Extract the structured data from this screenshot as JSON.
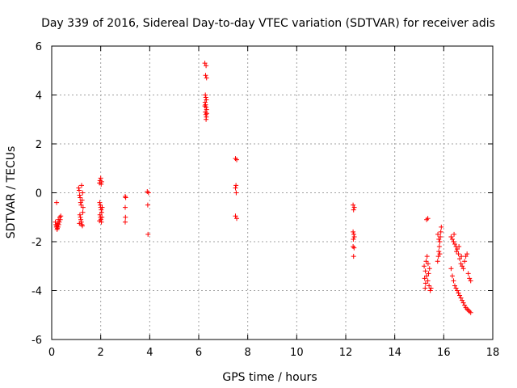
{
  "chart_data": {
    "type": "scatter",
    "title": "Day 339 of 2016, Sidereal Day-to-day VTEC variation (SDTVAR) for receiver adis",
    "xlabel": "GPS time / hours",
    "ylabel": "SDTVAR / TECUs",
    "xlim": [
      0,
      18
    ],
    "ylim": [
      -6,
      6
    ],
    "xticks": [
      0,
      2,
      4,
      6,
      8,
      10,
      12,
      14,
      16,
      18
    ],
    "yticks": [
      -6,
      -4,
      -2,
      0,
      2,
      4,
      6
    ],
    "xtick_labels": [
      "0",
      "2",
      "4",
      "6",
      "8",
      "10",
      "12",
      "14",
      "16",
      "18"
    ],
    "ytick_labels": [
      "-6",
      "-4",
      "-2",
      "0",
      "2",
      "4",
      "6"
    ],
    "grid": true,
    "marker": "+",
    "color": "#ff0000",
    "series": [
      {
        "name": "SDTVAR",
        "points": [
          [
            0.2,
            -0.4
          ],
          [
            0.15,
            -1.2
          ],
          [
            0.17,
            -1.3
          ],
          [
            0.19,
            -1.4
          ],
          [
            0.21,
            -1.35
          ],
          [
            0.23,
            -1.45
          ],
          [
            0.25,
            -1.25
          ],
          [
            0.27,
            -1.1
          ],
          [
            0.29,
            -1.3
          ],
          [
            0.31,
            -1.2
          ],
          [
            0.33,
            -1.0
          ],
          [
            0.35,
            -1.1
          ],
          [
            0.37,
            -0.95
          ],
          [
            0.22,
            -1.5
          ],
          [
            0.26,
            -1.4
          ],
          [
            1.1,
            0.2
          ],
          [
            1.12,
            0.1
          ],
          [
            1.14,
            -0.1
          ],
          [
            1.16,
            -0.2
          ],
          [
            1.18,
            -0.4
          ],
          [
            1.2,
            -0.5
          ],
          [
            1.22,
            0.3
          ],
          [
            1.24,
            -0.3
          ],
          [
            1.26,
            0.0
          ],
          [
            1.28,
            -0.6
          ],
          [
            1.15,
            -0.9
          ],
          [
            1.17,
            -1.0
          ],
          [
            1.19,
            -1.1
          ],
          [
            1.21,
            -1.2
          ],
          [
            1.23,
            -1.3
          ],
          [
            1.25,
            -1.35
          ],
          [
            1.13,
            -1.25
          ],
          [
            1.27,
            -0.8
          ],
          [
            1.95,
            0.4
          ],
          [
            1.97,
            0.5
          ],
          [
            2.0,
            0.6
          ],
          [
            2.02,
            0.35
          ],
          [
            2.04,
            0.45
          ],
          [
            1.96,
            -0.4
          ],
          [
            1.98,
            -0.5
          ],
          [
            2.0,
            -0.6
          ],
          [
            2.02,
            -0.7
          ],
          [
            2.04,
            -0.8
          ],
          [
            1.97,
            -0.9
          ],
          [
            1.99,
            -1.0
          ],
          [
            2.01,
            -1.1
          ],
          [
            2.03,
            -1.2
          ],
          [
            2.05,
            -1.0
          ],
          [
            1.95,
            -1.15
          ],
          [
            2.06,
            -0.6
          ],
          [
            3.0,
            -0.15
          ],
          [
            3.02,
            -0.2
          ],
          [
            3.0,
            -0.6
          ],
          [
            3.01,
            -1.0
          ],
          [
            3.0,
            -1.2
          ],
          [
            3.9,
            0.05
          ],
          [
            3.95,
            0.0
          ],
          [
            3.92,
            -0.5
          ],
          [
            3.93,
            -1.7
          ],
          [
            6.25,
            5.3
          ],
          [
            6.3,
            5.2
          ],
          [
            6.28,
            4.8
          ],
          [
            6.32,
            4.7
          ],
          [
            6.27,
            4.0
          ],
          [
            6.29,
            3.9
          ],
          [
            6.31,
            3.8
          ],
          [
            6.26,
            3.7
          ],
          [
            6.28,
            3.6
          ],
          [
            6.3,
            3.5
          ],
          [
            6.32,
            3.4
          ],
          [
            6.27,
            3.3
          ],
          [
            6.29,
            3.2
          ],
          [
            6.31,
            3.1
          ],
          [
            6.3,
            3.0
          ],
          [
            6.25,
            3.55
          ],
          [
            6.33,
            3.25
          ],
          [
            7.5,
            1.4
          ],
          [
            7.55,
            1.35
          ],
          [
            7.52,
            0.3
          ],
          [
            7.5,
            0.2
          ],
          [
            7.53,
            0.0
          ],
          [
            7.5,
            -0.95
          ],
          [
            7.55,
            -1.05
          ],
          [
            12.3,
            -0.5
          ],
          [
            12.35,
            -0.6
          ],
          [
            12.32,
            -0.7
          ],
          [
            12.3,
            -1.6
          ],
          [
            12.33,
            -1.7
          ],
          [
            12.35,
            -1.8
          ],
          [
            12.31,
            -1.9
          ],
          [
            12.3,
            -2.2
          ],
          [
            12.34,
            -2.25
          ],
          [
            12.32,
            -2.6
          ],
          [
            15.3,
            -1.1
          ],
          [
            15.35,
            -1.05
          ],
          [
            15.2,
            -3.0
          ],
          [
            15.25,
            -3.2
          ],
          [
            15.3,
            -3.4
          ],
          [
            15.35,
            -3.6
          ],
          [
            15.4,
            -3.8
          ],
          [
            15.45,
            -4.0
          ],
          [
            15.28,
            -2.8
          ],
          [
            15.32,
            -2.6
          ],
          [
            15.36,
            -2.9
          ],
          [
            15.22,
            -3.5
          ],
          [
            15.26,
            -3.7
          ],
          [
            15.38,
            -3.3
          ],
          [
            15.42,
            -3.1
          ],
          [
            15.48,
            -3.9
          ],
          [
            15.24,
            -3.9
          ],
          [
            15.75,
            -2.8
          ],
          [
            15.78,
            -2.6
          ],
          [
            15.8,
            -2.4
          ],
          [
            15.82,
            -2.2
          ],
          [
            15.84,
            -2.0
          ],
          [
            15.86,
            -1.8
          ],
          [
            15.88,
            -1.6
          ],
          [
            15.9,
            -1.4
          ],
          [
            15.76,
            -1.7
          ],
          [
            15.8,
            -1.9
          ],
          [
            15.84,
            -2.5
          ],
          [
            16.3,
            -1.8
          ],
          [
            16.35,
            -1.9
          ],
          [
            16.4,
            -2.0
          ],
          [
            16.45,
            -2.1
          ],
          [
            16.5,
            -2.2
          ],
          [
            16.55,
            -2.3
          ],
          [
            16.6,
            -2.5
          ],
          [
            16.65,
            -2.7
          ],
          [
            16.7,
            -2.9
          ],
          [
            16.75,
            -3.0
          ],
          [
            16.8,
            -3.1
          ],
          [
            16.85,
            -2.8
          ],
          [
            16.9,
            -2.6
          ],
          [
            16.95,
            -2.5
          ],
          [
            17.0,
            -3.3
          ],
          [
            17.05,
            -3.5
          ],
          [
            17.1,
            -3.6
          ],
          [
            16.42,
            -1.7
          ],
          [
            16.52,
            -2.4
          ],
          [
            16.62,
            -2.2
          ],
          [
            16.72,
            -2.6
          ],
          [
            16.3,
            -3.1
          ],
          [
            16.35,
            -3.4
          ],
          [
            16.4,
            -3.6
          ],
          [
            16.45,
            -3.8
          ],
          [
            16.5,
            -3.9
          ],
          [
            16.55,
            -4.0
          ],
          [
            16.6,
            -4.1
          ],
          [
            16.65,
            -4.2
          ],
          [
            16.7,
            -4.3
          ],
          [
            16.75,
            -4.4
          ],
          [
            16.8,
            -4.5
          ],
          [
            16.85,
            -4.6
          ],
          [
            16.9,
            -4.7
          ],
          [
            16.95,
            -4.75
          ],
          [
            17.0,
            -4.8
          ],
          [
            17.05,
            -4.85
          ],
          [
            17.1,
            -4.9
          ]
        ]
      }
    ]
  }
}
